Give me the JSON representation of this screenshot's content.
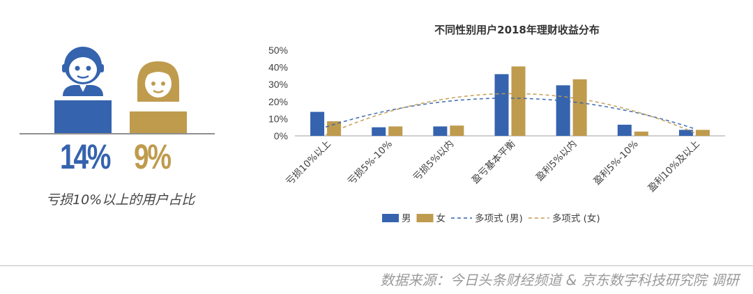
{
  "colors": {
    "male": "#3563ae",
    "female": "#bf9b4e",
    "axis": "#bfbfbf",
    "text": "#404040"
  },
  "infographic": {
    "male_icon": "male-user-icon",
    "female_icon": "female-user-icon",
    "male_percent": "14%",
    "female_percent": "9%",
    "caption": "亏损10%以上的用户占比"
  },
  "chart_data": {
    "type": "bar",
    "title": "不同性别用户2018年理财收益分布",
    "categories": [
      "亏损10%以上",
      "亏损5%-10%",
      "亏损5%以内",
      "盈亏基本平衡",
      "盈利5%以内",
      "盈利5%-10%",
      "盈利10%及以上"
    ],
    "series": [
      {
        "name": "男",
        "values": [
          14,
          5,
          5.5,
          36,
          29.5,
          6.5,
          3.5
        ]
      },
      {
        "name": "女",
        "values": [
          8.5,
          5.5,
          6,
          40.5,
          33,
          2.5,
          3.5
        ]
      }
    ],
    "trendlines": [
      {
        "name": "多项式 (男)",
        "type": "polynomial",
        "of": "男",
        "style": "dashed"
      },
      {
        "name": "多项式 (女)",
        "type": "polynomial",
        "of": "女",
        "style": "dashed"
      }
    ],
    "ylim": [
      0,
      50
    ],
    "yticks": [
      "0%",
      "10%",
      "20%",
      "30%",
      "40%",
      "50%"
    ],
    "legend_position": "bottom",
    "grid": false
  },
  "footer": {
    "source": "数据来源：今日头条财经频道 & 京东数字科技研究院 调研"
  }
}
